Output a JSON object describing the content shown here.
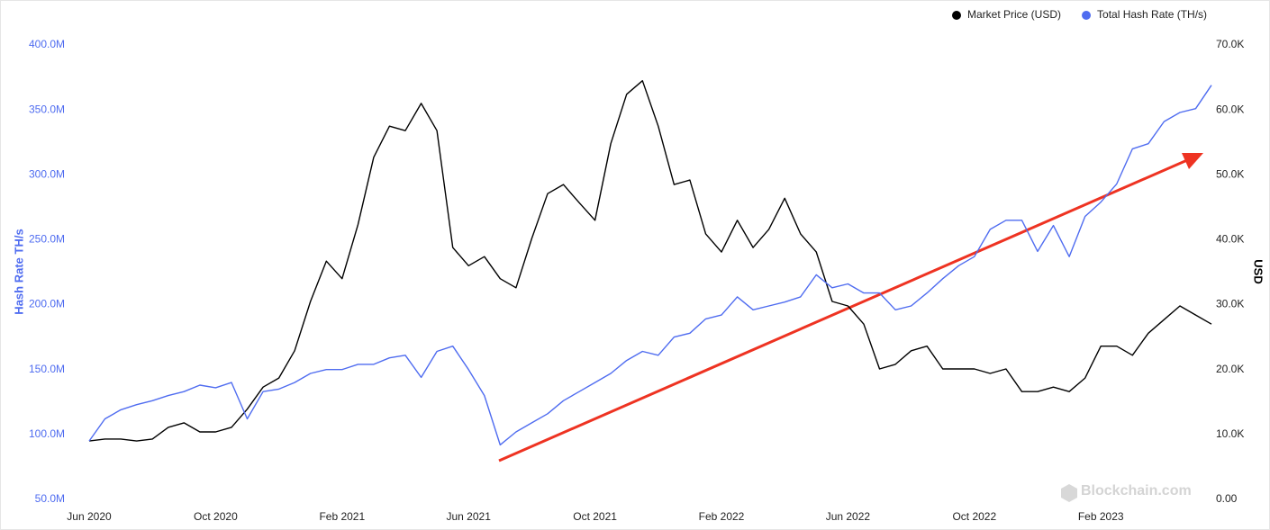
{
  "chart_data": {
    "type": "line",
    "y_label": "Hash Rate TH/s",
    "y2_label": "USD",
    "watermark": "Blockchain.com",
    "categories": [
      "Jun 2020",
      null,
      null,
      null,
      null,
      null,
      null,
      null,
      "Oct 2020",
      null,
      null,
      null,
      null,
      null,
      null,
      null,
      "Feb 2021",
      null,
      null,
      null,
      null,
      null,
      null,
      null,
      "Jun 2021",
      null,
      null,
      null,
      null,
      null,
      null,
      null,
      "Oct 2021",
      null,
      null,
      null,
      null,
      null,
      null,
      null,
      "Feb 2022",
      null,
      null,
      null,
      null,
      null,
      null,
      null,
      "Jun 2022",
      null,
      null,
      null,
      null,
      null,
      null,
      null,
      "Oct 2022",
      null,
      null,
      null,
      null,
      null,
      null,
      null,
      "Feb 2023",
      null,
      null,
      null,
      null,
      null,
      null,
      null
    ],
    "series": [
      {
        "name": "Market Price (USD)",
        "color": "#000000",
        "axis": "y2",
        "values": [
          9000,
          9300,
          9300,
          9000,
          9300,
          11100,
          11800,
          10400,
          10400,
          11100,
          13900,
          17300,
          18700,
          22900,
          30500,
          36700,
          34000,
          42300,
          52700,
          57500,
          56800,
          61000,
          56800,
          38800,
          36000,
          37400,
          34000,
          32600,
          40200,
          47100,
          48500,
          45700,
          43000,
          54800,
          62400,
          64500,
          57500,
          48500,
          49200,
          40900,
          38100,
          43000,
          38800,
          41600,
          46400,
          40900,
          38100,
          30500,
          29800,
          27000,
          20100,
          20800,
          22900,
          23600,
          20100,
          20100,
          20100,
          19400,
          20100,
          16600,
          16600,
          17300,
          16600,
          18700,
          23600,
          23600,
          22200,
          25600,
          27700,
          29800,
          28400,
          27000
        ]
      },
      {
        "name": "Total Hash Rate (TH/s)",
        "color": "#4f6cf0",
        "values": [
          95000000,
          112000000,
          119000000,
          123000000,
          126000000,
          130000000,
          133000000,
          138000000,
          136000000,
          140000000,
          112000000,
          133000000,
          135000000,
          140000000,
          147000000,
          150000000,
          150000000,
          154000000,
          154000000,
          159000000,
          161000000,
          144000000,
          164000000,
          168000000,
          150000000,
          130000000,
          92000000,
          102000000,
          109000000,
          116000000,
          126000000,
          133000000,
          140000000,
          147000000,
          157000000,
          164000000,
          161000000,
          175000000,
          178000000,
          189000000,
          192000000,
          206000000,
          196000000,
          199000000,
          202000000,
          206000000,
          223000000,
          213000000,
          216000000,
          209000000,
          209000000,
          196000000,
          199000000,
          209000000,
          220000000,
          230000000,
          237000000,
          258000000,
          265000000,
          265000000,
          241000000,
          261000000,
          237000000,
          268000000,
          279000000,
          293000000,
          320000000,
          324000000,
          341000000,
          348000000,
          351000000,
          369000000
        ]
      }
    ],
    "ylim": [
      50000000,
      400000000
    ],
    "yticks": [
      {
        "value": 50000000,
        "label": "50.0M"
      },
      {
        "value": 100000000,
        "label": "100.0M"
      },
      {
        "value": 150000000,
        "label": "150.0M"
      },
      {
        "value": 200000000,
        "label": "200.0M"
      },
      {
        "value": 250000000,
        "label": "250.0M"
      },
      {
        "value": 300000000,
        "label": "300.0M"
      },
      {
        "value": 350000000,
        "label": "350.0M"
      },
      {
        "value": 400000000,
        "label": "400.0M"
      }
    ],
    "y2lim": [
      0,
      70000
    ],
    "y2ticks": [
      {
        "value": 0,
        "label": "0.00"
      },
      {
        "value": 10000,
        "label": "10.0K"
      },
      {
        "value": 20000,
        "label": "20.0K"
      },
      {
        "value": 30000,
        "label": "30.0K"
      },
      {
        "value": 40000,
        "label": "40.0K"
      },
      {
        "value": 50000,
        "label": "50.0K"
      },
      {
        "value": 60000,
        "label": "60.0K"
      },
      {
        "value": 70000,
        "label": "70.0K"
      }
    ],
    "legend": "top-right",
    "grid": false
  }
}
